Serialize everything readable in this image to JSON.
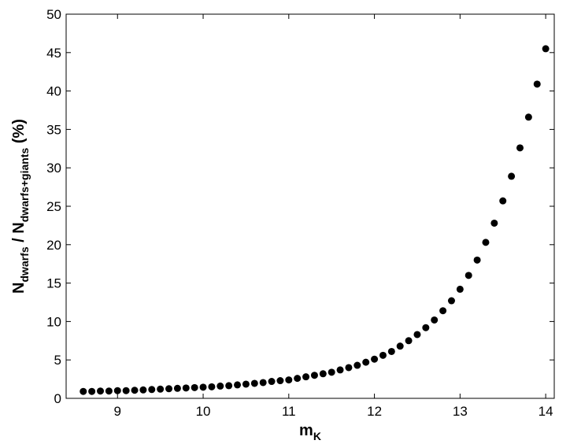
{
  "chart_data": {
    "type": "scatter",
    "xlabel": {
      "main": "m",
      "sub": "K"
    },
    "ylabel": {
      "main1": "N",
      "sub1": "dwarfs",
      "main2": " / N",
      "sub2": "dwarfs+giants",
      "main3": " (%)"
    },
    "color": "#000000",
    "x": [
      8.6,
      8.7,
      8.8,
      8.9,
      9.0,
      9.1,
      9.2,
      9.3,
      9.4,
      9.5,
      9.6,
      9.7,
      9.8,
      9.9,
      10.0,
      10.1,
      10.2,
      10.3,
      10.4,
      10.5,
      10.6,
      10.7,
      10.8,
      10.9,
      11.0,
      11.1,
      11.2,
      11.3,
      11.4,
      11.5,
      11.6,
      11.7,
      11.8,
      11.9,
      12.0,
      12.1,
      12.2,
      12.3,
      12.4,
      12.5,
      12.6,
      12.7,
      12.8,
      12.9,
      13.0,
      13.1,
      13.2,
      13.3,
      13.4,
      13.5,
      13.6,
      13.7,
      13.8,
      13.9,
      14.0
    ],
    "values": [
      0.9,
      0.9,
      0.95,
      0.95,
      1.0,
      1.0,
      1.05,
      1.1,
      1.15,
      1.2,
      1.25,
      1.3,
      1.35,
      1.4,
      1.45,
      1.5,
      1.6,
      1.65,
      1.75,
      1.85,
      1.95,
      2.05,
      2.2,
      2.3,
      2.4,
      2.6,
      2.8,
      3.0,
      3.2,
      3.4,
      3.7,
      4.0,
      4.3,
      4.7,
      5.1,
      5.6,
      6.1,
      6.8,
      7.5,
      8.3,
      9.2,
      10.2,
      11.4,
      12.7,
      14.2,
      16.0,
      18.0,
      20.3,
      22.8,
      25.7,
      28.9,
      32.6,
      36.6,
      40.9,
      45.5
    ],
    "xlim": [
      8.4,
      14.1
    ],
    "xticks": [
      9,
      10,
      11,
      12,
      13,
      14
    ],
    "ylim": [
      0,
      50
    ],
    "yticks": [
      0,
      5,
      10,
      15,
      20,
      25,
      30,
      35,
      40,
      45,
      50
    ]
  }
}
